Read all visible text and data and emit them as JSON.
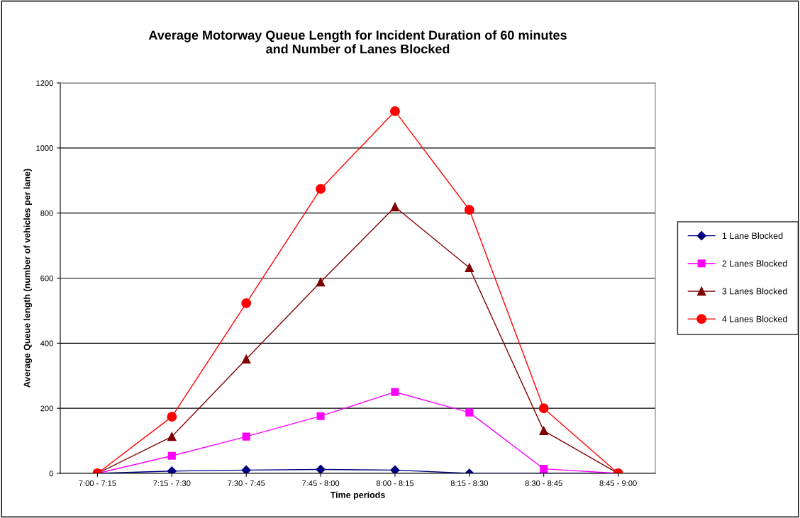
{
  "chart_data": {
    "type": "line",
    "title": "Average Motorway Queue Length for Incident Duration of 60 minutes\nand Number of Lanes Blocked",
    "xlabel": "Time periods",
    "ylabel": "Average Queue length (number of vehicles per lane)",
    "categories": [
      "7:00 - 7:15",
      "7:15 - 7:30",
      "7:30 - 7:45",
      "7:45 - 8:00",
      "8:00 - 8:15",
      "8:15 - 8:30",
      "8:30 - 8:45",
      "8:45 - 9:00"
    ],
    "series": [
      {
        "name": "1 Lane Blocked",
        "color": "#000080",
        "marker": "diamond",
        "values": [
          0,
          7,
          10,
          12,
          10,
          0,
          0,
          0
        ]
      },
      {
        "name": "2 Lanes Blocked",
        "color": "#ff00ff",
        "marker": "square",
        "values": [
          0,
          54,
          113,
          176,
          250,
          187,
          14,
          0
        ]
      },
      {
        "name": "3 Lanes Blocked",
        "color": "#800000",
        "marker": "triangle",
        "values": [
          0,
          113,
          351,
          588,
          819,
          632,
          131,
          0
        ]
      },
      {
        "name": "4 Lanes Blocked",
        "color": "#ff0000",
        "marker": "circle",
        "values": [
          0,
          174,
          523,
          874,
          1113,
          810,
          200,
          0
        ]
      }
    ],
    "ylim": [
      0,
      1200
    ],
    "yticks": [
      0,
      200,
      400,
      600,
      800,
      1000,
      1200
    ],
    "grid": "y",
    "legend": "right",
    "line_style": "solid"
  }
}
